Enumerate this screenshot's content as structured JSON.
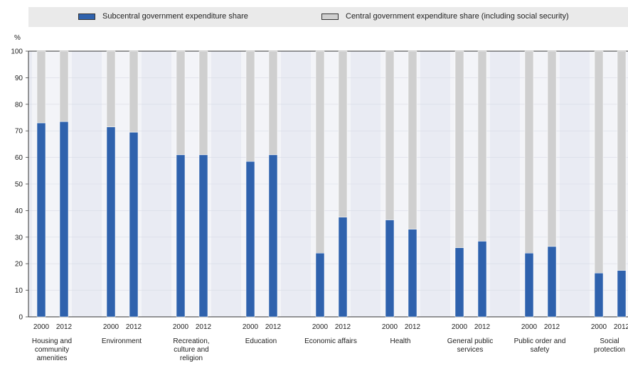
{
  "chart_data": {
    "type": "bar",
    "stacked": true,
    "ylabel": "%",
    "ylim": [
      0,
      100
    ],
    "yticks": [
      0,
      10,
      20,
      30,
      40,
      50,
      60,
      70,
      80,
      90,
      100
    ],
    "grid": true,
    "legend_position": "top",
    "groups": [
      {
        "label": "Housing and community amenities",
        "label_lines": [
          "Housing and",
          "community",
          "amenities"
        ]
      },
      {
        "label": "Environment",
        "label_lines": [
          "Environment"
        ]
      },
      {
        "label": "Recreation, culture and religion",
        "label_lines": [
          "Recreation,",
          "culture and",
          "religion"
        ]
      },
      {
        "label": "Education",
        "label_lines": [
          "Education"
        ]
      },
      {
        "label": "Economic affairs",
        "label_lines": [
          "Economic affairs"
        ]
      },
      {
        "label": "Health",
        "label_lines": [
          "Health"
        ]
      },
      {
        "label": "General public services",
        "label_lines": [
          "General public",
          "services"
        ]
      },
      {
        "label": "Public order and safety",
        "label_lines": [
          "Public order and",
          "safety"
        ]
      },
      {
        "label": "Social protection",
        "label_lines": [
          "Social",
          "protection"
        ]
      }
    ],
    "years": [
      "2000",
      "2012"
    ],
    "series": [
      {
        "name": "Subcentral government expenditure share",
        "color": "#2f62ad",
        "values": [
          [
            73,
            73.5
          ],
          [
            71.5,
            69.5
          ],
          [
            61,
            61
          ],
          [
            58.5,
            61
          ],
          [
            24,
            37.5
          ],
          [
            36.5,
            33
          ],
          [
            26,
            28.5
          ],
          [
            24,
            26.5
          ],
          [
            16.5,
            17.5
          ]
        ]
      },
      {
        "name": "Central government expenditure share (including social security)",
        "color": "#cfcfcf",
        "values": [
          [
            27,
            26.5
          ],
          [
            28.5,
            30.5
          ],
          [
            39,
            39
          ],
          [
            41.5,
            39
          ],
          [
            76,
            62.5
          ],
          [
            63.5,
            67
          ],
          [
            74,
            71.5
          ],
          [
            76,
            73.5
          ],
          [
            83.5,
            82.5
          ]
        ]
      }
    ]
  }
}
